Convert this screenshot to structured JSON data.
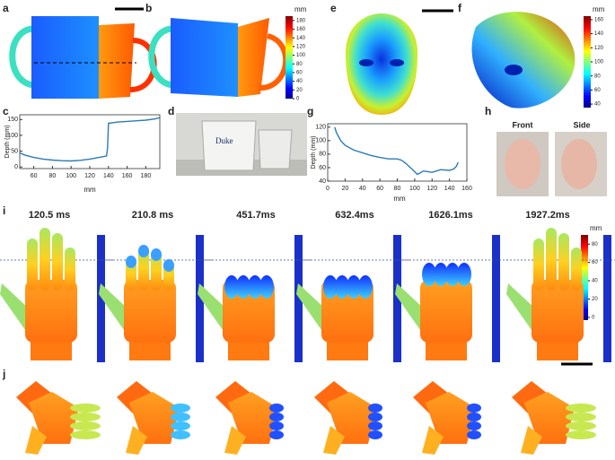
{
  "panel_labels": [
    "a",
    "b",
    "c",
    "d",
    "e",
    "f",
    "g",
    "h",
    "i",
    "j"
  ],
  "colorbars": [
    {
      "unit": "mm",
      "lim": [
        0,
        190
      ],
      "ticks": [
        0,
        20,
        40,
        60,
        80,
        100,
        120,
        140,
        160,
        180
      ]
    },
    {
      "unit": "mm",
      "lim": [
        35,
        165
      ],
      "ticks": [
        40,
        60,
        80,
        100,
        120,
        140,
        160
      ]
    },
    {
      "unit": "mm",
      "lim": [
        -3,
        90
      ],
      "ticks": [
        0,
        20,
        40,
        60,
        80
      ]
    }
  ],
  "chart_data": [
    {
      "type": "line",
      "x_label": "mm",
      "y_label": "Depth (mm)",
      "color": "#2b7bb9",
      "x": [
        45,
        50,
        60,
        70,
        80,
        90,
        100,
        110,
        120,
        130,
        138,
        139,
        140,
        145,
        150,
        160,
        170,
        180,
        190,
        195
      ],
      "values": [
        45,
        38,
        30,
        25,
        22,
        20,
        19,
        21,
        25,
        30,
        35,
        60,
        138,
        140,
        142,
        144,
        146,
        148,
        152,
        156
      ],
      "xlim": [
        45,
        195
      ],
      "ylim": [
        -5,
        165
      ],
      "xticks": [
        60,
        80,
        100,
        120,
        140,
        160,
        180
      ],
      "yticks": [
        0,
        50,
        100,
        150
      ]
    },
    {
      "type": "line",
      "x_label": "mm",
      "y_label": "Depth (mm)",
      "color": "#2b7bb9",
      "x": [
        8,
        10,
        15,
        20,
        30,
        40,
        50,
        60,
        70,
        80,
        85,
        90,
        95,
        100,
        103,
        106,
        110,
        120,
        130,
        140,
        145,
        148,
        150
      ],
      "values": [
        120,
        112,
        100,
        93,
        86,
        82,
        78,
        75,
        73,
        73,
        71,
        66,
        60,
        54,
        50,
        52,
        55,
        53,
        57,
        56,
        58,
        62,
        68
      ],
      "xlim": [
        0,
        160
      ],
      "ylim": [
        40,
        125
      ],
      "xticks": [
        0,
        20,
        40,
        60,
        80,
        100,
        120,
        140,
        160
      ],
      "yticks": [
        40,
        60,
        80,
        100,
        120
      ]
    }
  ],
  "photo_text": "Duke",
  "photo_labels": [
    "Front",
    "Side"
  ],
  "hand_times": [
    "120.5 ms",
    "210.8 ms",
    "451.7ms",
    "632.4ms",
    "1626.1ms",
    "1927.2ms"
  ]
}
